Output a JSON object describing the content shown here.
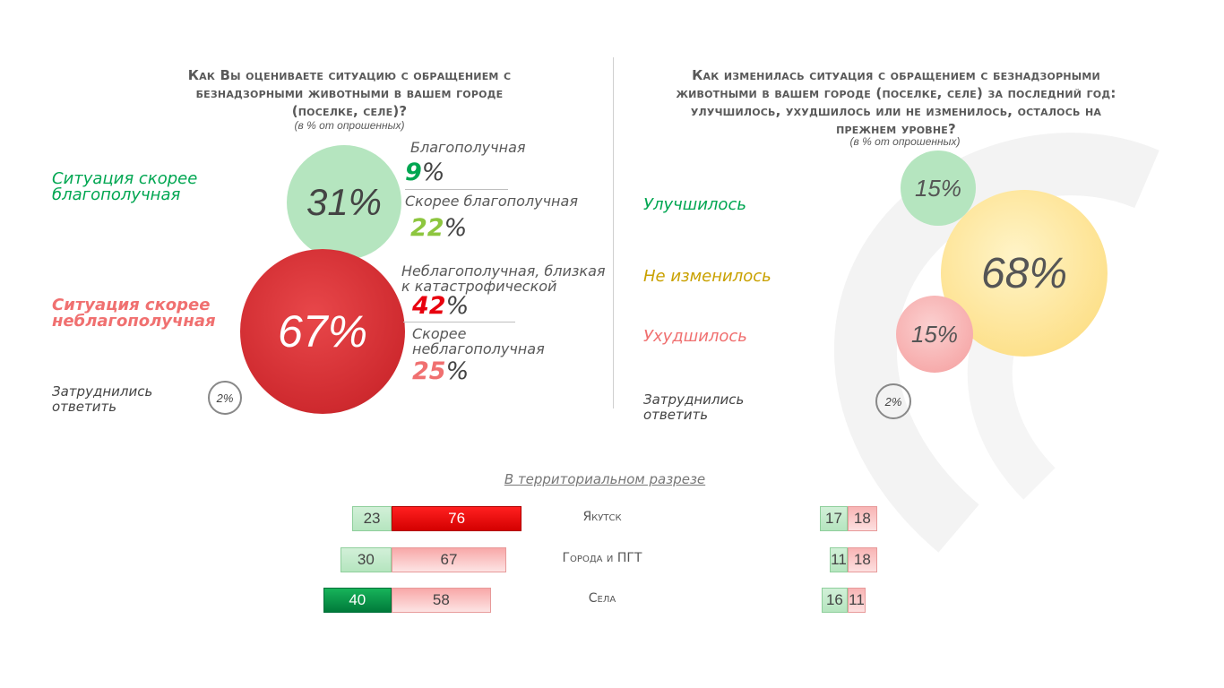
{
  "left": {
    "title_lines": [
      "Как Вы оцениваете ситуацию с обращением с",
      "безнадзорными животными в вашем городе",
      "(поселке, селе)?"
    ],
    "subtitle": "(в % от опрошенных)",
    "group_good": "Ситуация скорее благополучная",
    "group_bad": "Ситуация скорее неблагополучная",
    "difficult": "Затруднились ответить",
    "good_total": "31%",
    "bad_total": "67%",
    "difficult_value": "2%",
    "items": [
      {
        "label": "Благополучная",
        "value": "9",
        "sign": "%"
      },
      {
        "label": "Скорее благополучная",
        "value": "22",
        "sign": "%"
      },
      {
        "label": "Неблагополучная, близкая к катастрофической",
        "value": "42",
        "sign": "%"
      },
      {
        "label": "Скорее неблагополучная",
        "value": "25",
        "sign": "%"
      }
    ]
  },
  "right": {
    "title_lines": [
      "Как изменилась ситуация с обращением с безнадзорными",
      "животными в вашем городе (поселке, селе) за последний год:",
      "улучшилось, ухудшилось или не изменилось, осталось на",
      "прежнем уровне?"
    ],
    "subtitle": "(в % от опрошенных)",
    "improved": "Улучшилось",
    "unchanged": "Не изменилось",
    "worsened": "Ухудшилось",
    "difficult": "Затруднились ответить",
    "improved_value": "15%",
    "unchanged_value": "68%",
    "worsened_value": "15%",
    "difficult_value": "2%"
  },
  "territorial_title": "В территориальном разрезе",
  "colors": {
    "green_light": "#b5e5bf",
    "green_dark": "#00a651",
    "red": "#e8262c",
    "red_light": "#f8b4b4",
    "yellow": "#fde08a",
    "good_text": "#00a651",
    "bad_text": "#f07070",
    "unchanged_text": "#c9a100"
  },
  "chart_data": [
    {
      "type": "bar",
      "title": "Как Вы оцениваете ситуацию с обращением с безнадзорными животными в вашем городе (поселке, селе)?",
      "categories": [
        "Якутск",
        "Города и ПГТ",
        "Села"
      ],
      "series": [
        {
          "name": "Ситуация скорее благополучная",
          "values": [
            23,
            30,
            40
          ]
        },
        {
          "name": "Ситуация скорее неблагополучная",
          "values": [
            76,
            67,
            58
          ]
        }
      ]
    },
    {
      "type": "bar",
      "title": "Как изменилась ситуация с обращением с безнадзорными животными в вашем городе (поселке, селе) за последний год?",
      "categories": [
        "Якутск",
        "Города и ПГТ",
        "Села"
      ],
      "series": [
        {
          "name": "Улучшилось",
          "values": [
            17,
            11,
            16
          ]
        },
        {
          "name": "Ухудшилось",
          "values": [
            18,
            18,
            11
          ]
        }
      ]
    }
  ]
}
